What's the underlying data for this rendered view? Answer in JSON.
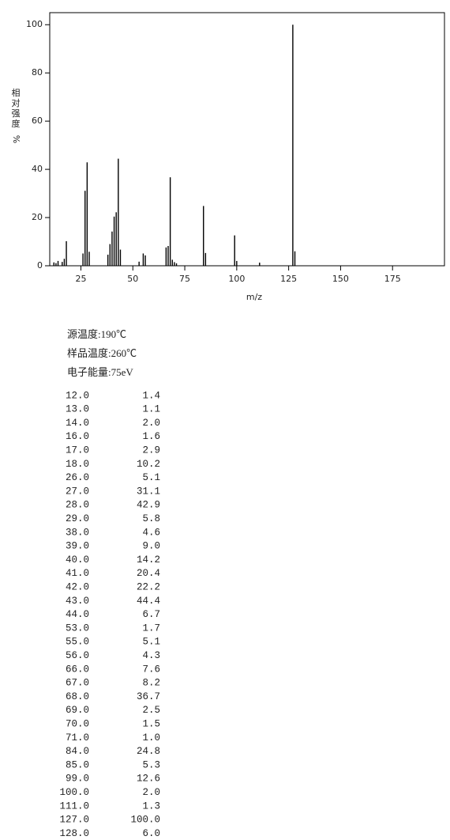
{
  "chart_data": {
    "type": "bar",
    "y_label_chars": [
      "相",
      "对",
      "强",
      "度"
    ],
    "y_label_unit": "%",
    "x_label": "m/z",
    "x": [
      12,
      13,
      14,
      16,
      17,
      18,
      26,
      27,
      28,
      29,
      38,
      39,
      40,
      41,
      42,
      43,
      44,
      53,
      55,
      56,
      66,
      67,
      68,
      69,
      70,
      71,
      84,
      85,
      99,
      100,
      111,
      127,
      128
    ],
    "values": [
      1.4,
      1.1,
      2.0,
      1.6,
      2.9,
      10.2,
      5.1,
      31.1,
      42.9,
      5.8,
      4.6,
      9.0,
      14.2,
      20.4,
      22.2,
      44.4,
      6.7,
      1.7,
      5.1,
      4.3,
      7.6,
      8.2,
      36.7,
      2.5,
      1.5,
      1.0,
      24.8,
      5.3,
      12.6,
      2.0,
      1.3,
      100.0,
      6.0
    ],
    "color": "#000000",
    "xlim": [
      10,
      200
    ],
    "xticks": [
      25,
      50,
      75,
      100,
      125,
      150,
      175
    ],
    "ylim": [
      0,
      105
    ],
    "yticks": [
      0,
      20,
      40,
      60,
      80,
      100
    ]
  },
  "conditions": [
    "源温度:190℃",
    "样品温度:260℃",
    "电子能量:75eV"
  ],
  "table": {
    "rows": [
      [
        "12.0",
        "1.4"
      ],
      [
        "13.0",
        "1.1"
      ],
      [
        "14.0",
        "2.0"
      ],
      [
        "16.0",
        "1.6"
      ],
      [
        "17.0",
        "2.9"
      ],
      [
        "18.0",
        "10.2"
      ],
      [
        "26.0",
        "5.1"
      ],
      [
        "27.0",
        "31.1"
      ],
      [
        "28.0",
        "42.9"
      ],
      [
        "29.0",
        "5.8"
      ],
      [
        "38.0",
        "4.6"
      ],
      [
        "39.0",
        "9.0"
      ],
      [
        "40.0",
        "14.2"
      ],
      [
        "41.0",
        "20.4"
      ],
      [
        "42.0",
        "22.2"
      ],
      [
        "43.0",
        "44.4"
      ],
      [
        "44.0",
        "6.7"
      ],
      [
        "53.0",
        "1.7"
      ],
      [
        "55.0",
        "5.1"
      ],
      [
        "56.0",
        "4.3"
      ],
      [
        "66.0",
        "7.6"
      ],
      [
        "67.0",
        "8.2"
      ],
      [
        "68.0",
        "36.7"
      ],
      [
        "69.0",
        "2.5"
      ],
      [
        "70.0",
        "1.5"
      ],
      [
        "71.0",
        "1.0"
      ],
      [
        "84.0",
        "24.8"
      ],
      [
        "85.0",
        "5.3"
      ],
      [
        "99.0",
        "12.6"
      ],
      [
        "100.0",
        "2.0"
      ],
      [
        "111.0",
        "1.3"
      ],
      [
        "127.0",
        "100.0"
      ],
      [
        "128.0",
        "6.0"
      ]
    ]
  }
}
